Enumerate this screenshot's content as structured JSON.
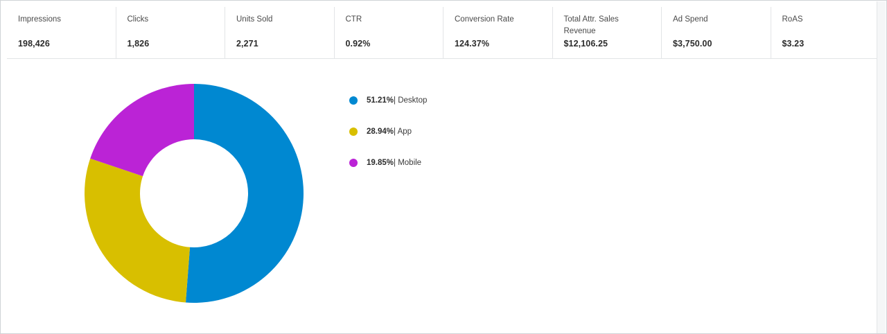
{
  "metrics": [
    {
      "label": "Impressions",
      "value": "198,426"
    },
    {
      "label": "Clicks",
      "value": "1,826"
    },
    {
      "label": "Units Sold",
      "value": "2,271"
    },
    {
      "label": "CTR",
      "value": "0.92%"
    },
    {
      "label": "Conversion Rate",
      "value": "124.37%"
    },
    {
      "label": "Total Attr. Sales Revenue",
      "value": "$12,106.25"
    },
    {
      "label": "Ad Spend",
      "value": "$3,750.00"
    },
    {
      "label": "RoAS",
      "value": "$3.23"
    }
  ],
  "chart_data": {
    "type": "pie",
    "variant": "donut",
    "categories": [
      "Desktop",
      "App",
      "Mobile"
    ],
    "values": [
      51.21,
      28.94,
      19.85
    ],
    "percent_labels": [
      "51.21%",
      "28.94%",
      "19.85%"
    ],
    "legend_separator": "| ",
    "colors": [
      "#0088d1",
      "#d8bf00",
      "#bb23d6"
    ],
    "legend_placement": "right"
  }
}
